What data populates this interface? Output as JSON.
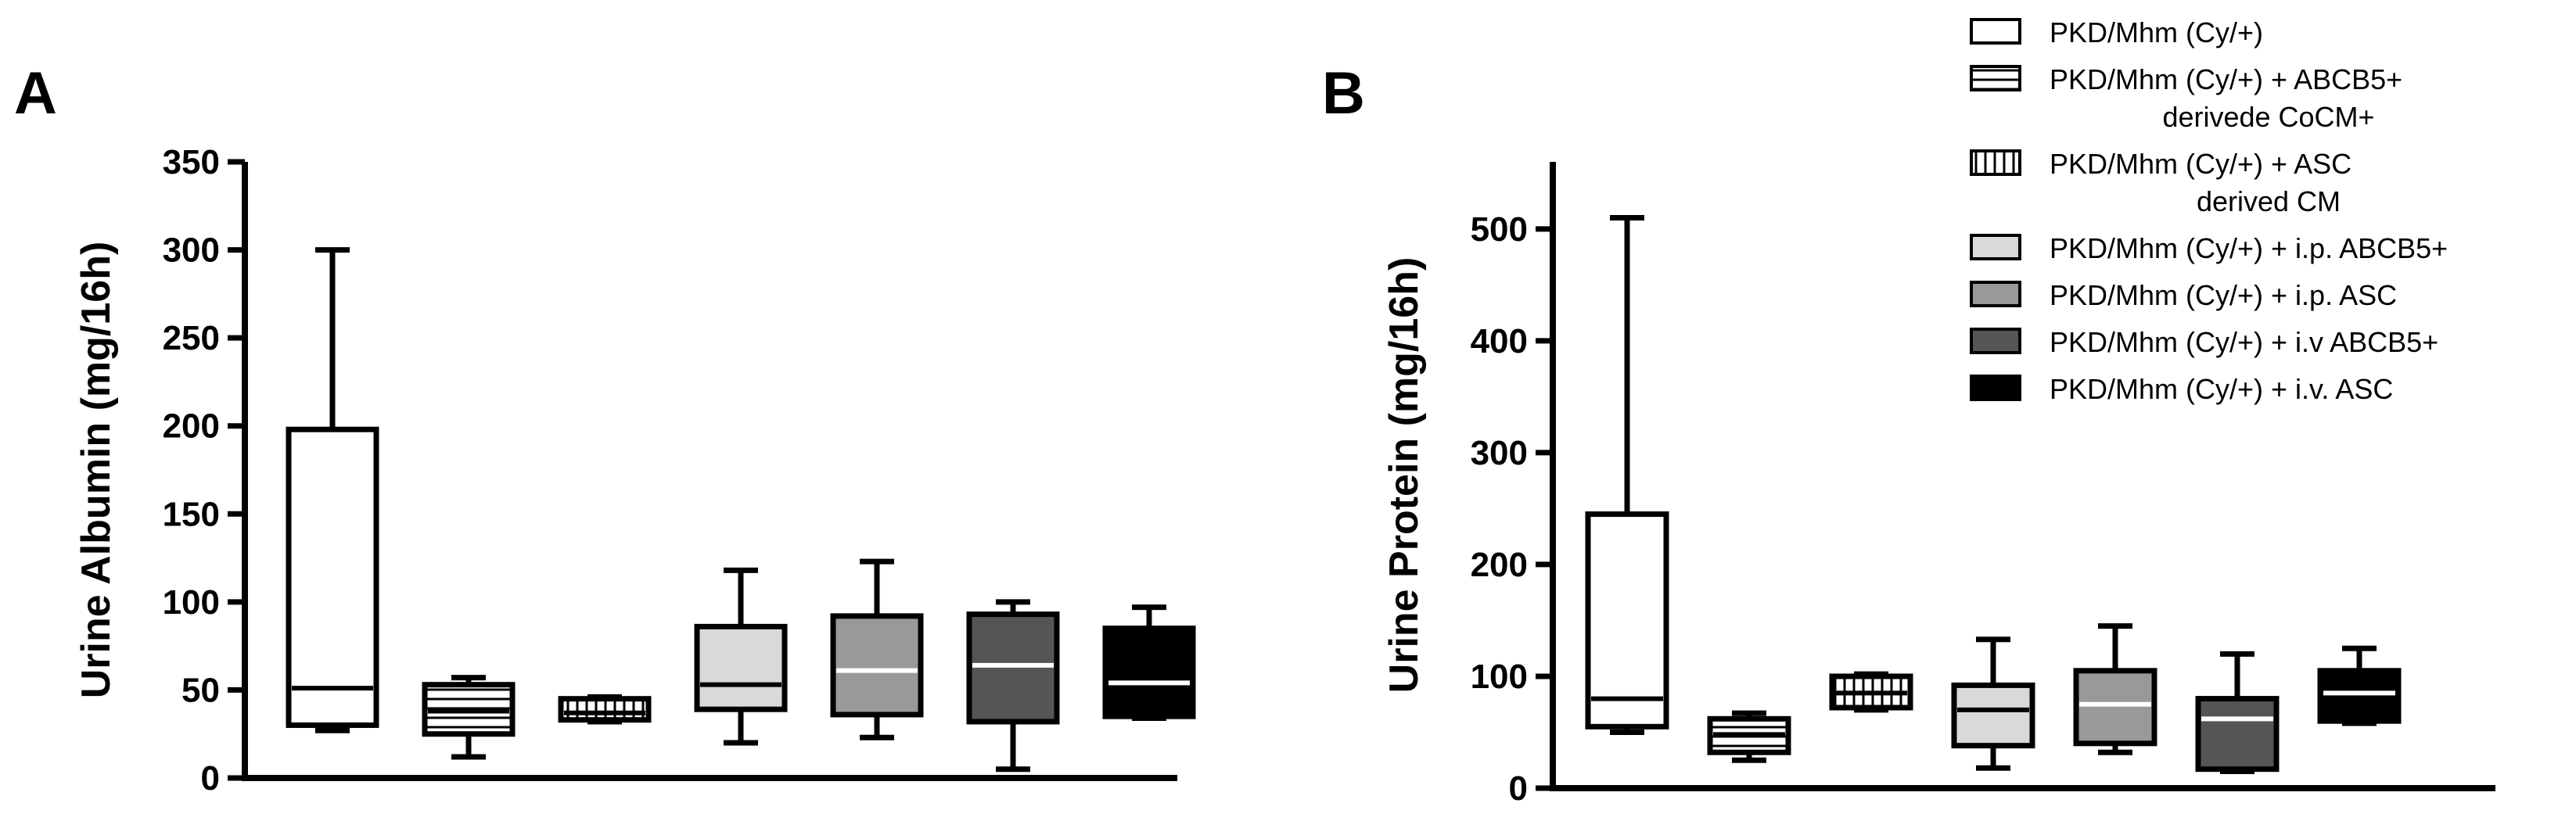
{
  "figure": {
    "panel_a_letter": "A",
    "panel_b_letter": "B"
  },
  "legend": [
    {
      "lines": [
        "PKD/Mhm (Cy/+)"
      ],
      "fill": "#ffffff",
      "pattern": "none"
    },
    {
      "lines": [
        "PKD/Mhm (Cy/+) + ABCB5+",
        "derivede CoCM+"
      ],
      "fill": "#ffffff",
      "pattern": "horizontal"
    },
    {
      "lines": [
        "PKD/Mhm (Cy/+) + ASC",
        "derived CM"
      ],
      "fill": "#ffffff",
      "pattern": "vertical"
    },
    {
      "lines": [
        "PKD/Mhm (Cy/+) + i.p. ABCB5+"
      ],
      "fill": "#d9d9d9",
      "pattern": "none"
    },
    {
      "lines": [
        "PKD/Mhm (Cy/+) + i.p. ASC"
      ],
      "fill": "#999999",
      "pattern": "none"
    },
    {
      "lines": [
        "PKD/Mhm (Cy/+) + i.v ABCB5+"
      ],
      "fill": "#555555",
      "pattern": "none"
    },
    {
      "lines": [
        "PKD/Mhm (Cy/+) + i.v. ASC"
      ],
      "fill": "#000000",
      "pattern": "none"
    }
  ],
  "chart_data": [
    {
      "type": "box",
      "panel": "A",
      "ylabel": "Urine Albumin (mg/16h)",
      "xlabel": "",
      "ylim": [
        0,
        350
      ],
      "yticks": [
        0,
        50,
        100,
        150,
        200,
        250,
        300,
        350
      ],
      "groups": [
        {
          "name": "PKD/Mhm (Cy/+)",
          "fill": "#ffffff",
          "pattern": "none",
          "min": 27,
          "q1": 30,
          "median": 51,
          "q3": 198,
          "max": 300
        },
        {
          "name": "PKD/Mhm (Cy/+) + ABCB5+ derivede CoCM+",
          "fill": "#ffffff",
          "pattern": "horizontal",
          "min": 12,
          "q1": 25,
          "median": 38,
          "q3": 53,
          "max": 57
        },
        {
          "name": "PKD/Mhm (Cy/+) + ASC derived CM",
          "fill": "#ffffff",
          "pattern": "vertical",
          "min": 32,
          "q1": 33,
          "median": 37,
          "q3": 45,
          "max": 46
        },
        {
          "name": "PKD/Mhm (Cy/+) + i.p. ABCB5+",
          "fill": "#d9d9d9",
          "pattern": "none",
          "min": 20,
          "q1": 39,
          "median": 53,
          "q3": 86,
          "max": 118
        },
        {
          "name": "PKD/Mhm (Cy/+) + i.p. ASC",
          "fill": "#999999",
          "pattern": "none",
          "min": 23,
          "q1": 36,
          "median": 61,
          "q3": 92,
          "max": 123
        },
        {
          "name": "PKD/Mhm (Cy/+) + i.v ABCB5+",
          "fill": "#555555",
          "pattern": "none",
          "min": 5,
          "q1": 32,
          "median": 64,
          "q3": 93,
          "max": 100
        },
        {
          "name": "PKD/Mhm (Cy/+) + i.v. ASC",
          "fill": "#000000",
          "pattern": "none",
          "min": 34,
          "q1": 35,
          "median": 54,
          "q3": 85,
          "max": 97
        }
      ]
    },
    {
      "type": "box",
      "panel": "B",
      "ylabel": "Urine Protein (mg/16h)",
      "xlabel": "",
      "ylim": [
        0,
        560
      ],
      "yticks": [
        0,
        100,
        200,
        300,
        400,
        500
      ],
      "groups": [
        {
          "name": "PKD/Mhm (Cy/+)",
          "fill": "#ffffff",
          "pattern": "none",
          "min": 50,
          "q1": 55,
          "median": 80,
          "q3": 245,
          "max": 510
        },
        {
          "name": "PKD/Mhm (Cy/+) + ABCB5+ derivede CoCM+",
          "fill": "#ffffff",
          "pattern": "horizontal",
          "min": 25,
          "q1": 32,
          "median": 48,
          "q3": 62,
          "max": 67
        },
        {
          "name": "PKD/Mhm (Cy/+) + ASC derived CM",
          "fill": "#ffffff",
          "pattern": "vertical",
          "min": 70,
          "q1": 72,
          "median": 85,
          "q3": 100,
          "max": 102
        },
        {
          "name": "PKD/Mhm (Cy/+) + i.p. ABCB5+",
          "fill": "#d9d9d9",
          "pattern": "none",
          "min": 18,
          "q1": 38,
          "median": 70,
          "q3": 92,
          "max": 133
        },
        {
          "name": "PKD/Mhm (Cy/+) + i.p. ASC",
          "fill": "#999999",
          "pattern": "none",
          "min": 32,
          "q1": 40,
          "median": 75,
          "q3": 105,
          "max": 145
        },
        {
          "name": "PKD/Mhm (Cy/+) + i.v ABCB5+",
          "fill": "#555555",
          "pattern": "none",
          "min": 15,
          "q1": 17,
          "median": 62,
          "q3": 80,
          "max": 120
        },
        {
          "name": "PKD/Mhm (Cy/+) + i.v. ASC",
          "fill": "#000000",
          "pattern": "none",
          "min": 58,
          "q1": 60,
          "median": 85,
          "q3": 105,
          "max": 125
        }
      ]
    }
  ]
}
